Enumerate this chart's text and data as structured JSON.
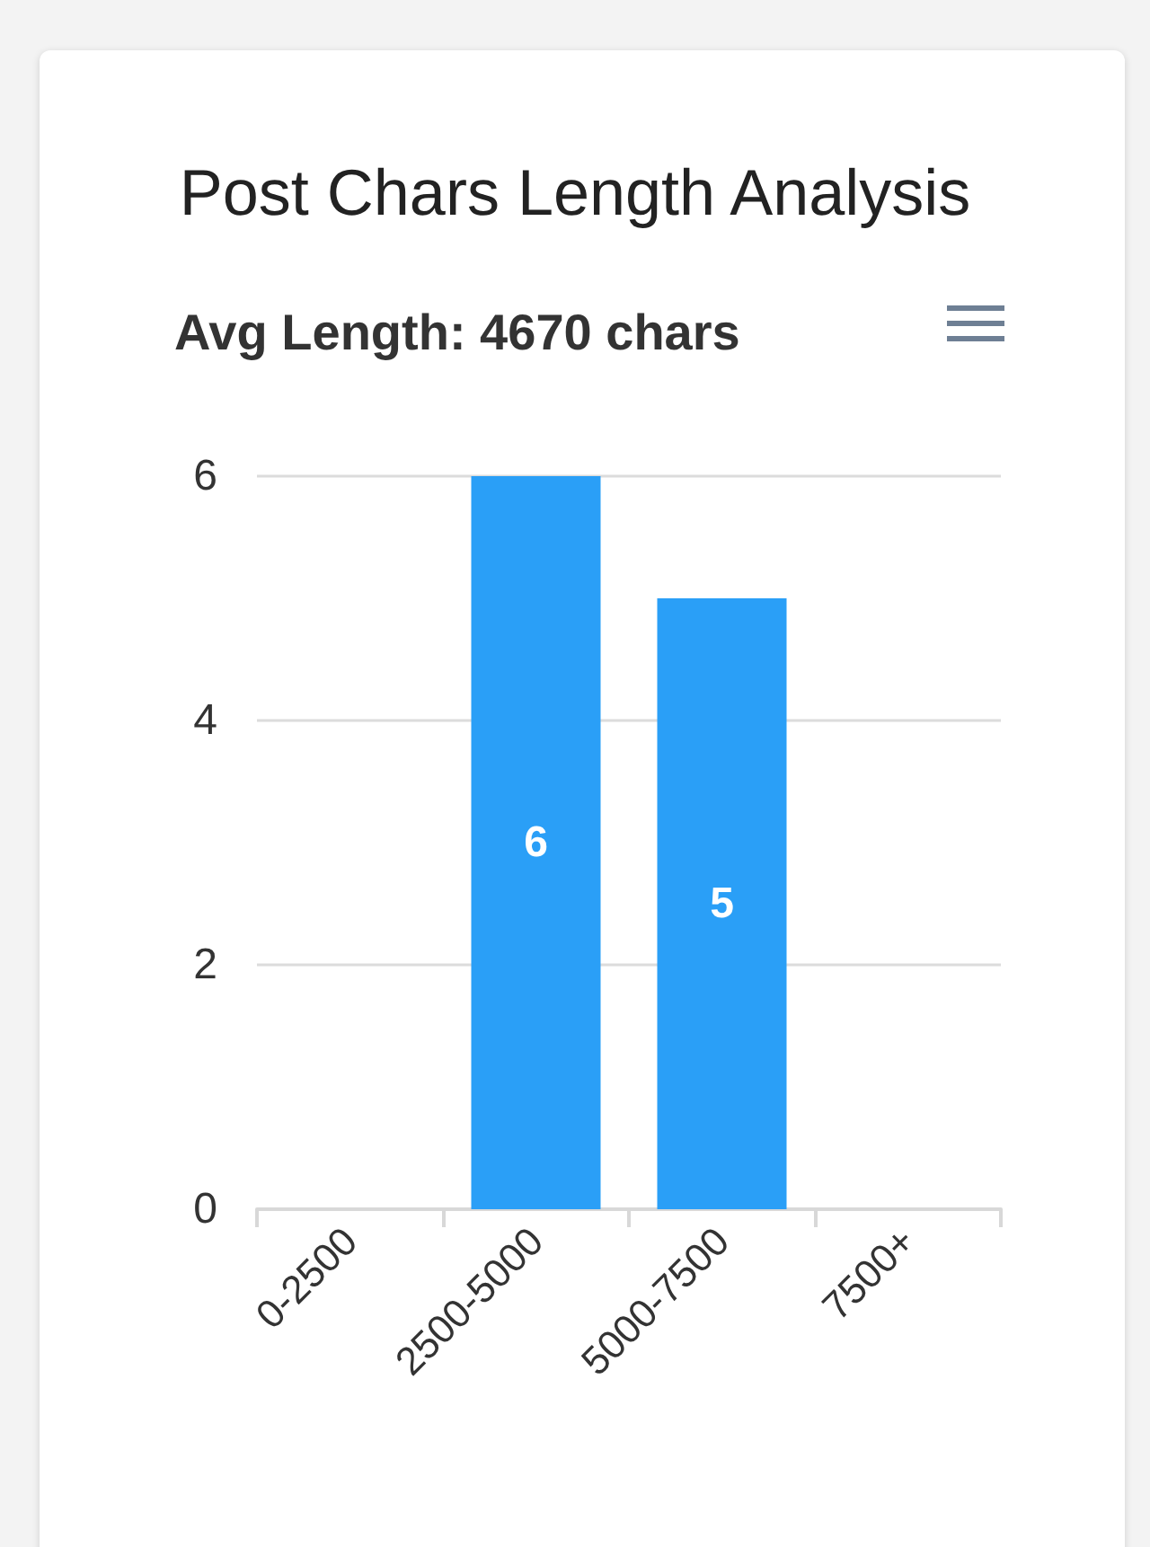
{
  "chart_data": {
    "type": "bar",
    "title": "Post Chars Length Analysis",
    "subtitle": "Avg Length: 4670 chars",
    "categories": [
      "0-2500",
      "2500-5000",
      "5000-7500",
      "7500+"
    ],
    "values": [
      0,
      6,
      5,
      0
    ],
    "color": "#2a9ff7",
    "value_labels": [
      null,
      "6",
      "5",
      null
    ],
    "ylim": [
      0,
      6
    ],
    "yticks": [
      0,
      2,
      4,
      6
    ],
    "grid": "y"
  }
}
